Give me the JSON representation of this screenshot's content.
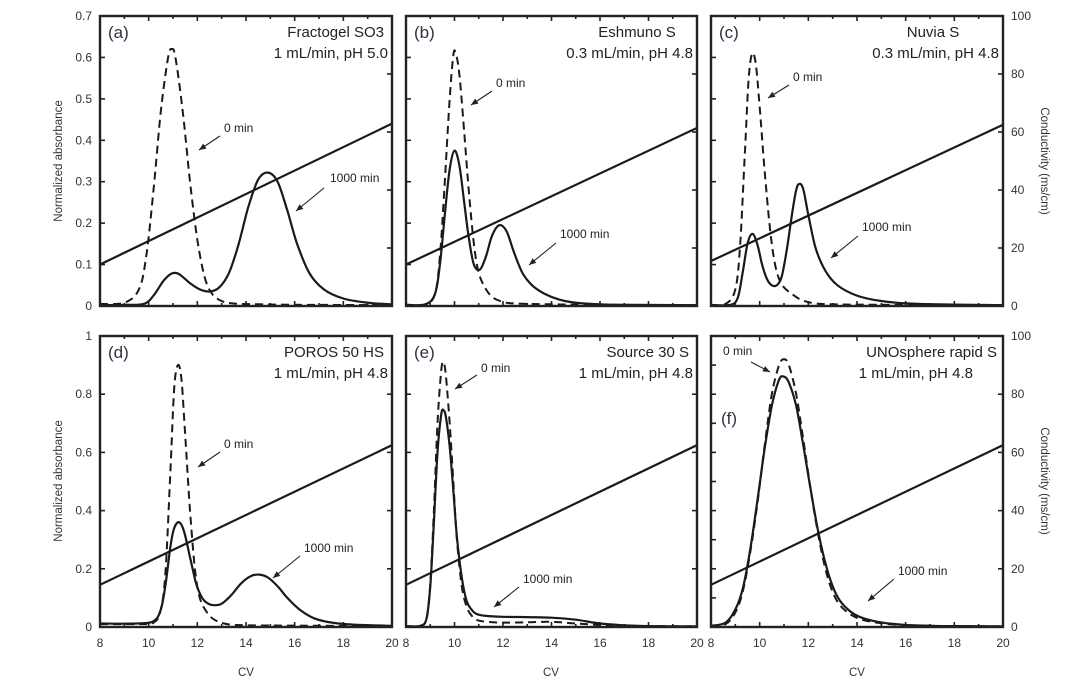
{
  "chart_data": {
    "type": "line",
    "description": "Six-panel chromatography elution profiles: normalized absorbance vs column volumes (CV) at 0 min (dashed) and 1000 min (solid) hold times, with salt-gradient conductivity line",
    "shared": {
      "xlabel": "CV",
      "xlim": [
        8,
        20
      ],
      "xticks": [
        8,
        10,
        12,
        14,
        16,
        18,
        20
      ],
      "left_ylabel": "Normalized absorbance",
      "right_ylabel": "Conductivity (ms/cm)",
      "right_ylim": [
        0,
        100
      ],
      "right_yticks": [
        0,
        20,
        40,
        60,
        80,
        100
      ],
      "conductivity_cv": [
        8,
        20
      ],
      "series_styles": {
        "0 min": "dashed",
        "1000 min": "solid",
        "conductivity": "solid straight line"
      }
    },
    "panels": [
      {
        "id": "a",
        "letter": "(a)",
        "resin": "Fractogel SO3",
        "conditions": "1 mL/min, pH 5.0",
        "ylim": [
          0,
          0.7
        ],
        "yticks": [
          "0",
          "0.1",
          "0.2",
          "0.3",
          "0.4",
          "0.5",
          "0.6",
          "0.7"
        ],
        "show_left_labels": true,
        "show_right_labels": false,
        "show_x_labels": false,
        "conductivity_ms_cm": [
          14.3,
          62.9
        ],
        "annotations": [
          {
            "text": "0 min",
            "series": "0 min"
          },
          {
            "text": "1000 min",
            "series": "1000 min"
          }
        ],
        "series": [
          {
            "name": "0 min",
            "style": "dashed",
            "x": [
              8.0,
              9.0,
              9.6,
              9.9,
              10.2,
              10.5,
              10.8,
              10.95,
              11.1,
              11.4,
              11.7,
              12.0,
              12.3,
              12.6,
              13.0,
              13.5,
              14.5,
              16,
              20
            ],
            "y": [
              0.005,
              0.008,
              0.04,
              0.12,
              0.28,
              0.47,
              0.6,
              0.62,
              0.6,
              0.47,
              0.3,
              0.16,
              0.07,
              0.03,
              0.012,
              0.006,
              0.004,
              0.003,
              0.002
            ]
          },
          {
            "name": "1000 min",
            "style": "solid",
            "x": [
              8.0,
              9.0,
              9.8,
              10.2,
              10.6,
              10.9,
              11.1,
              11.3,
              11.7,
              12.1,
              12.5,
              12.9,
              13.3,
              13.7,
              14.1,
              14.5,
              14.9,
              15.3,
              15.7,
              16.1,
              16.6,
              17.2,
              18,
              19,
              20
            ],
            "y": [
              0.002,
              0.003,
              0.005,
              0.025,
              0.06,
              0.077,
              0.08,
              0.075,
              0.055,
              0.04,
              0.035,
              0.045,
              0.08,
              0.15,
              0.24,
              0.305,
              0.322,
              0.3,
              0.23,
              0.15,
              0.08,
              0.04,
              0.018,
              0.008,
              0.004
            ]
          }
        ]
      },
      {
        "id": "b",
        "letter": "(b)",
        "resin": "Eshmuno S",
        "conditions": "0.3 mL/min, pH 4.8",
        "ylim": [
          0,
          0.7
        ],
        "yticks": [
          "0",
          "0.1",
          "0.2",
          "0.3",
          "0.4",
          "0.5",
          "0.6",
          "0.7"
        ],
        "show_left_labels": false,
        "show_right_labels": false,
        "show_x_labels": false,
        "conductivity_ms_cm": [
          14.3,
          61.4
        ],
        "annotations": [
          {
            "text": "0 min",
            "series": "0 min"
          },
          {
            "text": "1000 min",
            "series": "1000 min"
          }
        ],
        "series": [
          {
            "name": "0 min",
            "style": "dashed",
            "x": [
              8.0,
              8.8,
              9.2,
              9.4,
              9.6,
              9.8,
              9.95,
              10.05,
              10.2,
              10.4,
              10.6,
              10.8,
              11.0,
              11.3,
              11.6,
              12.0,
              12.5,
              14,
              16,
              20
            ],
            "y": [
              0.003,
              0.004,
              0.03,
              0.12,
              0.3,
              0.5,
              0.605,
              0.61,
              0.56,
              0.42,
              0.27,
              0.15,
              0.08,
              0.04,
              0.02,
              0.01,
              0.006,
              0.004,
              0.003,
              0.002
            ]
          },
          {
            "name": "1000 min",
            "style": "solid",
            "x": [
              8.0,
              8.8,
              9.2,
              9.4,
              9.6,
              9.8,
              10.0,
              10.2,
              10.4,
              10.6,
              10.8,
              11.05,
              11.3,
              11.55,
              11.85,
              12.15,
              12.45,
              12.8,
              13.2,
              13.7,
              14.3,
              15,
              16,
              17,
              20
            ],
            "y": [
              0.003,
              0.004,
              0.03,
              0.1,
              0.22,
              0.33,
              0.375,
              0.34,
              0.25,
              0.16,
              0.1,
              0.088,
              0.12,
              0.17,
              0.195,
              0.18,
              0.13,
              0.08,
              0.05,
              0.03,
              0.016,
              0.008,
              0.004,
              0.003,
              0.002
            ]
          }
        ]
      },
      {
        "id": "c",
        "letter": "(c)",
        "resin": "Nuvia S",
        "conditions": "0.3 mL/min, pH 4.8",
        "ylim": [
          0,
          0.7
        ],
        "yticks": [
          "0",
          "0.1",
          "0.2",
          "0.3",
          "0.4",
          "0.5",
          "0.6",
          "0.7"
        ],
        "show_left_labels": false,
        "show_right_labels": true,
        "show_x_labels": false,
        "conductivity_ms_cm": [
          15.5,
          62.5
        ],
        "annotations": [
          {
            "text": "0 min",
            "series": "0 min"
          },
          {
            "text": "1000 min",
            "series": "1000 min"
          }
        ],
        "series": [
          {
            "name": "0 min",
            "style": "dashed",
            "x": [
              8.0,
              8.6,
              9.0,
              9.2,
              9.4,
              9.55,
              9.7,
              9.85,
              10.0,
              10.2,
              10.4,
              10.6,
              10.8,
              11.0,
              11.3,
              11.7,
              12.2,
              13,
              15,
              20
            ],
            "y": [
              0.003,
              0.005,
              0.04,
              0.15,
              0.38,
              0.55,
              0.61,
              0.58,
              0.48,
              0.33,
              0.2,
              0.11,
              0.065,
              0.045,
              0.03,
              0.015,
              0.007,
              0.004,
              0.003,
              0.002
            ]
          },
          {
            "name": "1000 min",
            "style": "solid",
            "x": [
              8.0,
              8.8,
              9.1,
              9.3,
              9.5,
              9.7,
              9.9,
              10.1,
              10.3,
              10.5,
              10.7,
              10.9,
              11.1,
              11.3,
              11.5,
              11.65,
              11.8,
              12.0,
              12.3,
              12.7,
              13.2,
              14,
              15,
              16.5,
              20
            ],
            "y": [
              0.002,
              0.003,
              0.02,
              0.08,
              0.15,
              0.174,
              0.15,
              0.1,
              0.065,
              0.05,
              0.05,
              0.07,
              0.13,
              0.21,
              0.28,
              0.295,
              0.28,
              0.22,
              0.14,
              0.085,
              0.05,
              0.025,
              0.012,
              0.005,
              0.002
            ]
          }
        ]
      },
      {
        "id": "d",
        "letter": "(d)",
        "resin": "POROS 50 HS",
        "conditions": "1 mL/min, pH 4.8",
        "ylim": [
          0,
          1
        ],
        "yticks": [
          "0",
          "0.2",
          "0.4",
          "0.6",
          "0.8",
          "1"
        ],
        "show_left_labels": true,
        "show_right_labels": false,
        "show_x_labels": true,
        "conductivity_ms_cm": [
          14.5,
          62.5
        ],
        "annotations": [
          {
            "text": "0 min",
            "series": "0 min"
          },
          {
            "text": "1000 min",
            "series": "1000 min"
          }
        ],
        "series": [
          {
            "name": "0 min",
            "style": "dashed",
            "x": [
              8.0,
              9.5,
              10.2,
              10.5,
              10.7,
              10.9,
              11.05,
              11.2,
              11.35,
              11.5,
              11.7,
              11.9,
              12.1,
              12.4,
              12.7,
              13.1,
              13.6,
              15,
              20
            ],
            "y": [
              0.01,
              0.01,
              0.015,
              0.06,
              0.2,
              0.55,
              0.82,
              0.9,
              0.85,
              0.66,
              0.4,
              0.2,
              0.1,
              0.05,
              0.025,
              0.012,
              0.007,
              0.005,
              0.003
            ]
          },
          {
            "name": "1000 min",
            "style": "solid",
            "x": [
              8.0,
              9.5,
              10.2,
              10.5,
              10.7,
              10.9,
              11.05,
              11.25,
              11.45,
              11.7,
              11.95,
              12.2,
              12.45,
              12.7,
              13.0,
              13.4,
              13.8,
              14.2,
              14.55,
              14.9,
              15.3,
              15.7,
              16.2,
              16.8,
              17.6,
              18.5,
              20
            ],
            "y": [
              0.012,
              0.012,
              0.02,
              0.06,
              0.15,
              0.28,
              0.34,
              0.36,
              0.33,
              0.24,
              0.15,
              0.1,
              0.08,
              0.075,
              0.08,
              0.11,
              0.15,
              0.175,
              0.18,
              0.17,
              0.14,
              0.1,
              0.06,
              0.03,
              0.014,
              0.008,
              0.004
            ]
          }
        ]
      },
      {
        "id": "e",
        "letter": "(e)",
        "resin": "Source 30 S",
        "conditions": "1 mL/min, pH 4.8",
        "ylim": [
          0,
          1
        ],
        "yticks": [
          "0",
          "0.2",
          "0.4",
          "0.6",
          "0.8",
          "1"
        ],
        "show_left_labels": false,
        "show_right_labels": false,
        "show_x_labels": true,
        "conductivity_ms_cm": [
          14.5,
          62.5
        ],
        "annotations": [
          {
            "text": "0 min",
            "series": "0 min"
          },
          {
            "text": "1000 min",
            "series": "1000 min"
          }
        ],
        "series": [
          {
            "name": "0 min",
            "style": "dashed",
            "x": [
              8.0,
              8.6,
              8.85,
              9.0,
              9.15,
              9.3,
              9.45,
              9.55,
              9.65,
              9.8,
              9.95,
              10.1,
              10.3,
              10.5,
              10.7,
              10.9,
              11.3,
              12,
              13,
              14,
              15,
              16,
              17,
              18,
              20
            ],
            "y": [
              0.003,
              0.004,
              0.03,
              0.15,
              0.4,
              0.7,
              0.88,
              0.91,
              0.86,
              0.7,
              0.5,
              0.3,
              0.14,
              0.07,
              0.04,
              0.025,
              0.018,
              0.015,
              0.016,
              0.018,
              0.012,
              0.007,
              0.004,
              0.003,
              0.002
            ]
          },
          {
            "name": "1000 min",
            "style": "solid",
            "x": [
              8.0,
              8.6,
              8.85,
              9.0,
              9.15,
              9.3,
              9.45,
              9.55,
              9.65,
              9.8,
              9.95,
              10.1,
              10.3,
              10.5,
              10.7,
              10.9,
              11.3,
              12,
              13,
              14,
              15,
              16,
              17,
              18,
              20
            ],
            "y": [
              0.003,
              0.004,
              0.03,
              0.14,
              0.36,
              0.6,
              0.73,
              0.745,
              0.72,
              0.62,
              0.47,
              0.31,
              0.17,
              0.09,
              0.06,
              0.045,
              0.038,
              0.035,
              0.034,
              0.032,
              0.025,
              0.012,
              0.006,
              0.003,
              0.002
            ]
          }
        ]
      },
      {
        "id": "f",
        "letter": "(f)",
        "resin": "UNOsphere rapid S",
        "conditions": "1 mL/min, pH 4.8",
        "ylim": [
          0,
          1
        ],
        "yticks": [
          "",
          "",
          "",
          "",
          "",
          "",
          "",
          "",
          "",
          "",
          ""
        ],
        "show_left_labels": false,
        "show_right_labels": true,
        "show_x_labels": true,
        "conductivity_ms_cm": [
          14.5,
          62.5
        ],
        "annotations": [
          {
            "text": "0 min",
            "series": "0 min"
          },
          {
            "text": "1000 min",
            "series": "1000 min"
          }
        ],
        "series": [
          {
            "name": "0 min",
            "style": "dashed",
            "x": [
              8.0,
              8.6,
              9.0,
              9.3,
              9.6,
              9.9,
              10.2,
              10.5,
              10.8,
              11.0,
              11.2,
              11.5,
              11.8,
              12.1,
              12.4,
              12.7,
              13.0,
              13.3,
              13.7,
              14.1,
              14.6,
              15.2,
              16,
              17,
              18,
              20
            ],
            "y": [
              0.003,
              0.01,
              0.05,
              0.12,
              0.25,
              0.42,
              0.62,
              0.8,
              0.9,
              0.92,
              0.9,
              0.8,
              0.64,
              0.47,
              0.32,
              0.2,
              0.12,
              0.075,
              0.045,
              0.028,
              0.018,
              0.011,
              0.006,
              0.004,
              0.003,
              0.002
            ]
          },
          {
            "name": "1000 min",
            "style": "solid",
            "x": [
              8.0,
              8.6,
              9.0,
              9.3,
              9.6,
              9.9,
              10.2,
              10.5,
              10.8,
              11.0,
              11.2,
              11.5,
              11.8,
              12.1,
              12.4,
              12.7,
              13.0,
              13.3,
              13.7,
              14.1,
              14.6,
              15.2,
              16,
              17,
              18,
              20
            ],
            "y": [
              0.004,
              0.015,
              0.06,
              0.13,
              0.26,
              0.43,
              0.61,
              0.76,
              0.85,
              0.86,
              0.84,
              0.76,
              0.62,
              0.47,
              0.33,
              0.22,
              0.14,
              0.09,
              0.055,
              0.035,
              0.022,
              0.013,
              0.007,
              0.004,
              0.003,
              0.002
            ]
          }
        ]
      }
    ]
  }
}
